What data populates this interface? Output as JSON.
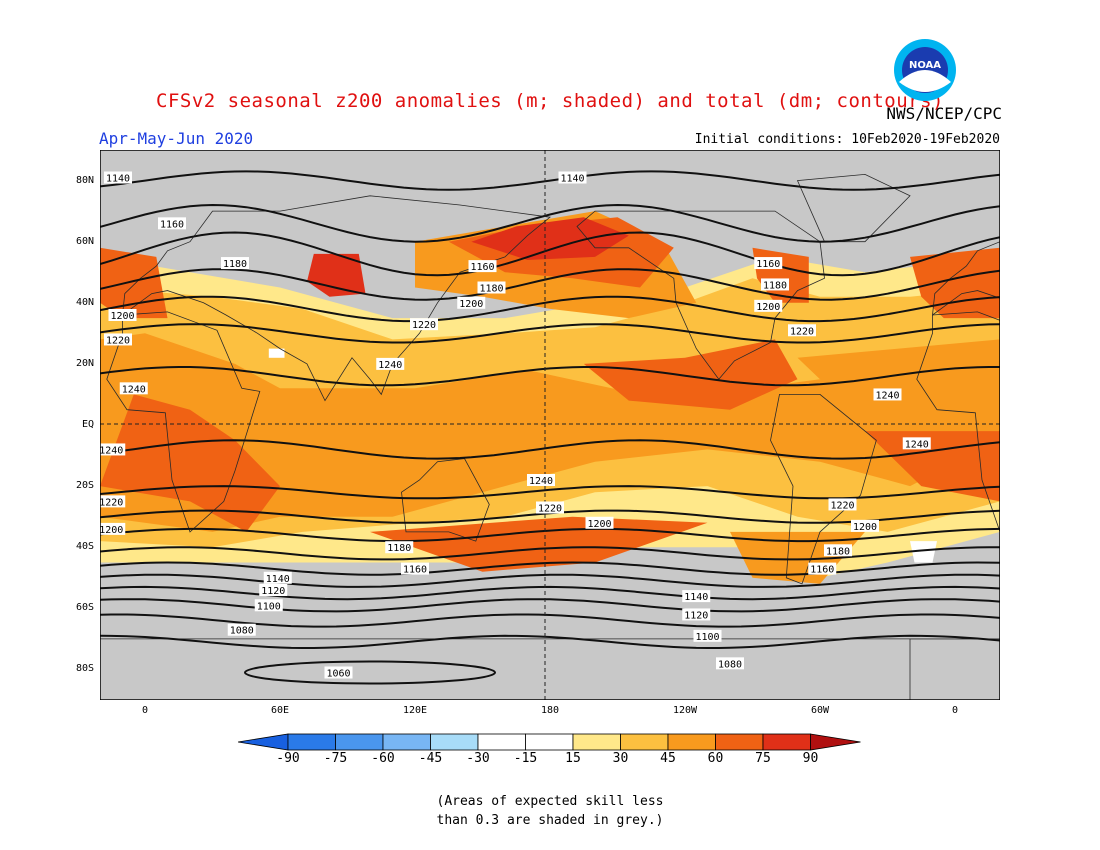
{
  "header": {
    "title": "CFSv2 seasonal z200 anomalies (m; shaded) and total (dm; contours)",
    "agency": "NWS/NCEP/CPC",
    "season": "Apr-May-Jun 2020",
    "initial_conditions": "Initial conditions: 10Feb2020-19Feb2020",
    "logo_text": "NOAA"
  },
  "axes": {
    "lat_labels": [
      "80N",
      "60N",
      "40N",
      "20N",
      "EQ",
      "20S",
      "40S",
      "60S",
      "80S"
    ],
    "lat_values": [
      80,
      60,
      40,
      20,
      0,
      -20,
      -40,
      -60,
      -80
    ],
    "lon_labels": [
      "0",
      "60E",
      "120E",
      "180",
      "120W",
      "60W",
      "0"
    ],
    "lon_values": [
      0,
      60,
      120,
      180,
      240,
      300,
      360
    ],
    "lon_range": [
      -20,
      380
    ],
    "lat_range": [
      -90,
      90
    ]
  },
  "contour_labels": [
    {
      "text": "1140",
      "lon": -12,
      "lat": 81
    },
    {
      "text": "1140",
      "lon": 190,
      "lat": 81
    },
    {
      "text": "1160",
      "lon": 12,
      "lat": 66
    },
    {
      "text": "1180",
      "lon": 40,
      "lat": 53
    },
    {
      "text": "1160",
      "lon": 150,
      "lat": 52
    },
    {
      "text": "1180",
      "lon": 154,
      "lat": 45
    },
    {
      "text": "1200",
      "lon": -10,
      "lat": 36
    },
    {
      "text": "1200",
      "lon": 145,
      "lat": 40
    },
    {
      "text": "1220",
      "lon": -12,
      "lat": 28
    },
    {
      "text": "1220",
      "lon": 124,
      "lat": 33
    },
    {
      "text": "1160",
      "lon": 277,
      "lat": 53
    },
    {
      "text": "1180",
      "lon": 280,
      "lat": 46
    },
    {
      "text": "1200",
      "lon": 277,
      "lat": 39
    },
    {
      "text": "1220",
      "lon": 292,
      "lat": 31
    },
    {
      "text": "1240",
      "lon": 109,
      "lat": 20
    },
    {
      "text": "1240",
      "lon": -5,
      "lat": 12
    },
    {
      "text": "1240",
      "lon": 330,
      "lat": 10
    },
    {
      "text": "1240",
      "lon": -15,
      "lat": -8
    },
    {
      "text": "1240",
      "lon": 343,
      "lat": -6
    },
    {
      "text": "1240",
      "lon": 176,
      "lat": -18
    },
    {
      "text": "1220",
      "lon": -15,
      "lat": -25
    },
    {
      "text": "1220",
      "lon": 180,
      "lat": -27
    },
    {
      "text": "1220",
      "lon": 310,
      "lat": -26
    },
    {
      "text": "1200",
      "lon": -15,
      "lat": -34
    },
    {
      "text": "1200",
      "lon": 202,
      "lat": -32
    },
    {
      "text": "1200",
      "lon": 320,
      "lat": -33
    },
    {
      "text": "1180",
      "lon": 113,
      "lat": -40
    },
    {
      "text": "1180",
      "lon": 308,
      "lat": -41
    },
    {
      "text": "1160",
      "lon": 120,
      "lat": -47
    },
    {
      "text": "1160",
      "lon": 301,
      "lat": -47
    },
    {
      "text": "1140",
      "lon": 59,
      "lat": -50
    },
    {
      "text": "1120",
      "lon": 57,
      "lat": -54
    },
    {
      "text": "1140",
      "lon": 245,
      "lat": -56
    },
    {
      "text": "1100",
      "lon": 55,
      "lat": -59
    },
    {
      "text": "1120",
      "lon": 245,
      "lat": -62
    },
    {
      "text": "1080",
      "lon": 43,
      "lat": -67
    },
    {
      "text": "1100",
      "lon": 250,
      "lat": -69
    },
    {
      "text": "1080",
      "lon": 260,
      "lat": -78
    },
    {
      "text": "1060",
      "lon": 86,
      "lat": -81
    }
  ],
  "colorbar": {
    "labels": [
      "-90",
      "-75",
      "-60",
      "-45",
      "-30",
      "-15",
      "15",
      "30",
      "45",
      "60",
      "75",
      "90"
    ],
    "colors": [
      "#1860e0",
      "#2a7ae8",
      "#4a96ee",
      "#78b6f4",
      "#a8dcf8",
      "#ffffff",
      "#ffe88a",
      "#fcc040",
      "#f89a1e",
      "#f06214",
      "#e03018",
      "#b01010"
    ]
  },
  "colors": {
    "skill_grey": "#c8c8c8",
    "land": "#c8c8c8"
  },
  "note": {
    "line1": "(Areas of expected skill less",
    "line2": "than 0.3 are shaded in grey.)"
  }
}
